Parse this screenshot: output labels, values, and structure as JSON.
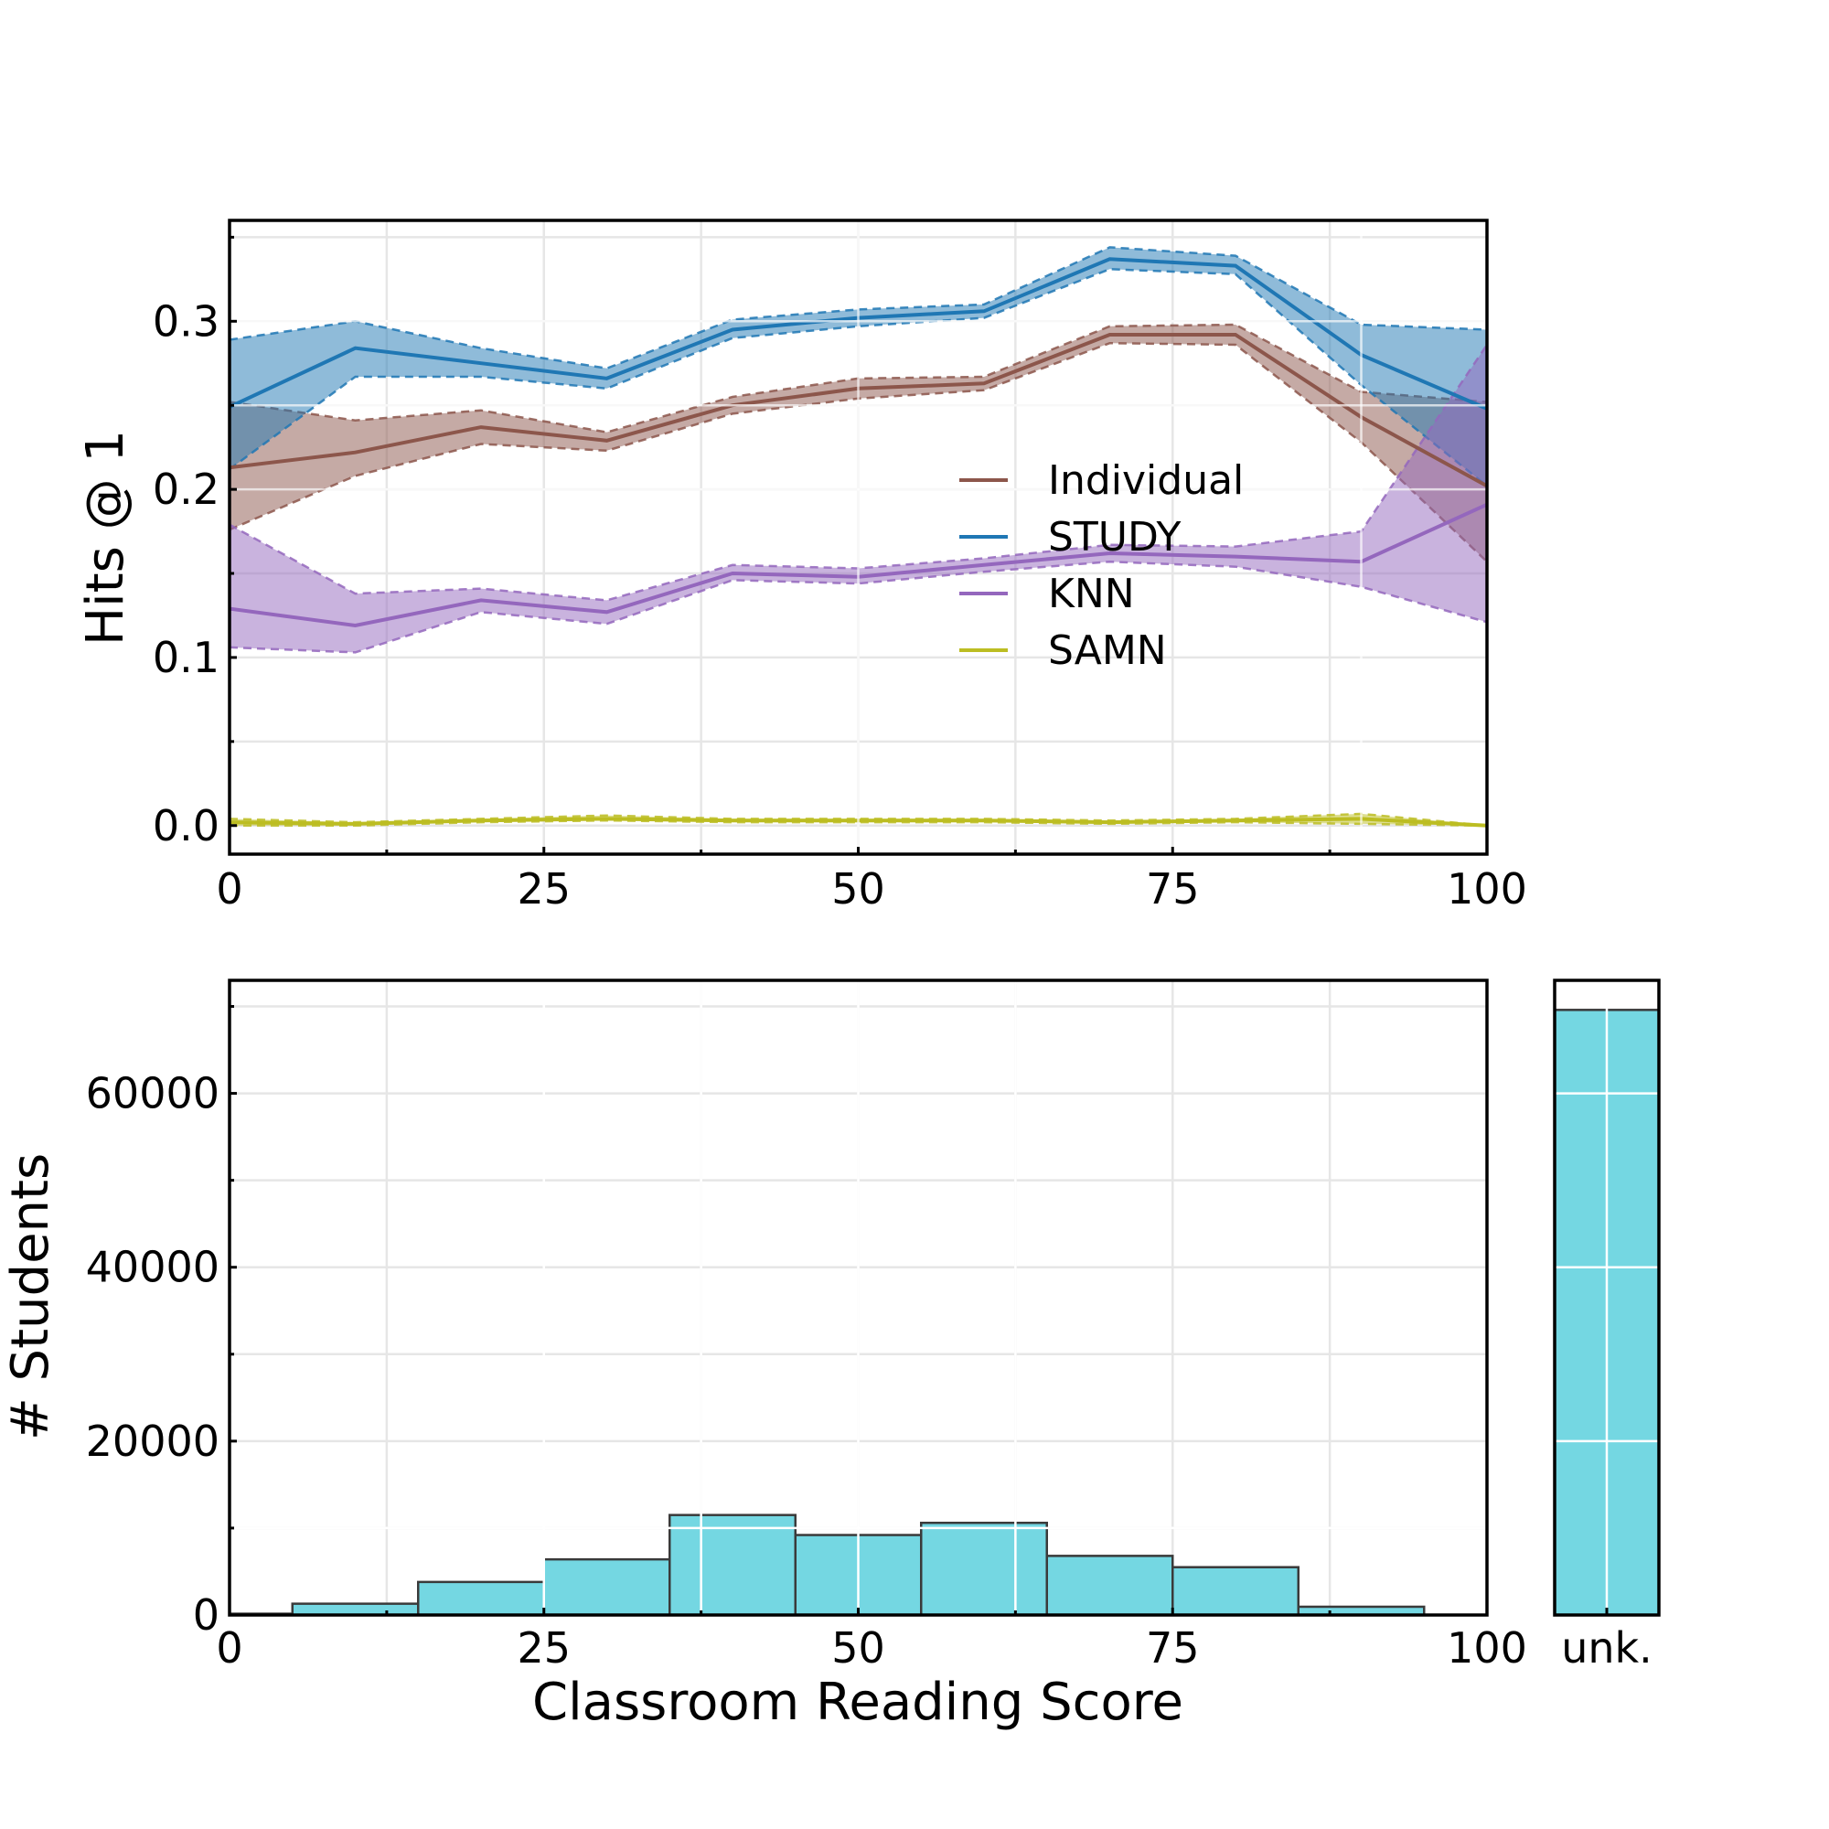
{
  "colors": {
    "Individual": "#8c564b",
    "STUDY": "#1f77b4",
    "KNN": "#9467bd",
    "SAMN": "#bcbd22",
    "hist_fill": "#74d7e2",
    "hist_edge": "#3a3a3a"
  },
  "chart_data": [
    {
      "type": "line",
      "ylabel": "Hits @ 1",
      "xlabel": "",
      "xlim": [
        0,
        100
      ],
      "ylim": [
        -0.017,
        0.36
      ],
      "x_ticks": [
        "0",
        "25",
        "50",
        "75",
        "100"
      ],
      "y_ticks": [
        "0.0",
        "0.1",
        "0.2",
        "0.3"
      ],
      "grid": true,
      "legend_placement": "center-right",
      "x": [
        0,
        10,
        20,
        30,
        40,
        50,
        60,
        70,
        80,
        90,
        100
      ],
      "series": [
        {
          "name": "Individual",
          "mean": [
            0.213,
            0.222,
            0.237,
            0.229,
            0.25,
            0.26,
            0.263,
            0.292,
            0.292,
            0.243,
            0.202
          ],
          "lower": [
            0.176,
            0.208,
            0.227,
            0.223,
            0.245,
            0.254,
            0.259,
            0.287,
            0.286,
            0.228,
            0.157
          ],
          "upper": [
            0.252,
            0.241,
            0.247,
            0.234,
            0.255,
            0.266,
            0.267,
            0.297,
            0.298,
            0.258,
            0.252
          ]
        },
        {
          "name": "STUDY",
          "mean": [
            0.249,
            0.284,
            0.275,
            0.266,
            0.295,
            0.302,
            0.306,
            0.337,
            0.333,
            0.28,
            0.248
          ],
          "lower": [
            0.212,
            0.267,
            0.267,
            0.26,
            0.29,
            0.297,
            0.302,
            0.331,
            0.328,
            0.262,
            0.202
          ],
          "upper": [
            0.289,
            0.3,
            0.284,
            0.272,
            0.301,
            0.307,
            0.31,
            0.344,
            0.339,
            0.298,
            0.295
          ]
        },
        {
          "name": "KNN",
          "mean": [
            0.129,
            0.119,
            0.134,
            0.127,
            0.15,
            0.148,
            0.155,
            0.162,
            0.16,
            0.157,
            0.191
          ],
          "lower": [
            0.106,
            0.103,
            0.127,
            0.12,
            0.146,
            0.144,
            0.151,
            0.157,
            0.154,
            0.142,
            0.121
          ],
          "upper": [
            0.179,
            0.138,
            0.141,
            0.134,
            0.155,
            0.153,
            0.159,
            0.167,
            0.166,
            0.175,
            0.286
          ]
        },
        {
          "name": "SAMN",
          "mean": [
            0.002,
            0.001,
            0.003,
            0.004,
            0.003,
            0.003,
            0.003,
            0.002,
            0.003,
            0.004,
            0.0
          ],
          "lower": [
            0.0,
            0.0,
            0.002,
            0.003,
            0.002,
            0.002,
            0.002,
            0.001,
            0.002,
            0.001,
            0.0
          ],
          "upper": [
            0.004,
            0.002,
            0.004,
            0.006,
            0.004,
            0.004,
            0.004,
            0.003,
            0.004,
            0.007,
            0.0
          ]
        }
      ]
    },
    {
      "type": "bar",
      "subtype": "histogram",
      "xlabel": "Classroom Reading Score",
      "ylabel": "# Students",
      "xlim": [
        0,
        100
      ],
      "ylim": [
        0,
        73000
      ],
      "x_ticks": [
        "0",
        "25",
        "50",
        "75",
        "100"
      ],
      "y_ticks": [
        "0",
        "20000",
        "40000",
        "60000"
      ],
      "grid": true,
      "bins": [
        {
          "start": -5,
          "end": 5,
          "value": 150
        },
        {
          "start": 5,
          "end": 15,
          "value": 1300
        },
        {
          "start": 15,
          "end": 25,
          "value": 3800
        },
        {
          "start": 25,
          "end": 35,
          "value": 6400
        },
        {
          "start": 35,
          "end": 45,
          "value": 11500
        },
        {
          "start": 45,
          "end": 55,
          "value": 9200
        },
        {
          "start": 55,
          "end": 65,
          "value": 10600
        },
        {
          "start": 65,
          "end": 75,
          "value": 6800
        },
        {
          "start": 75,
          "end": 85,
          "value": 5500
        },
        {
          "start": 85,
          "end": 95,
          "value": 950
        }
      ]
    },
    {
      "type": "bar",
      "categories": [
        "unk."
      ],
      "values": [
        69600
      ],
      "ylim": [
        0,
        73000
      ],
      "grid": true
    }
  ]
}
